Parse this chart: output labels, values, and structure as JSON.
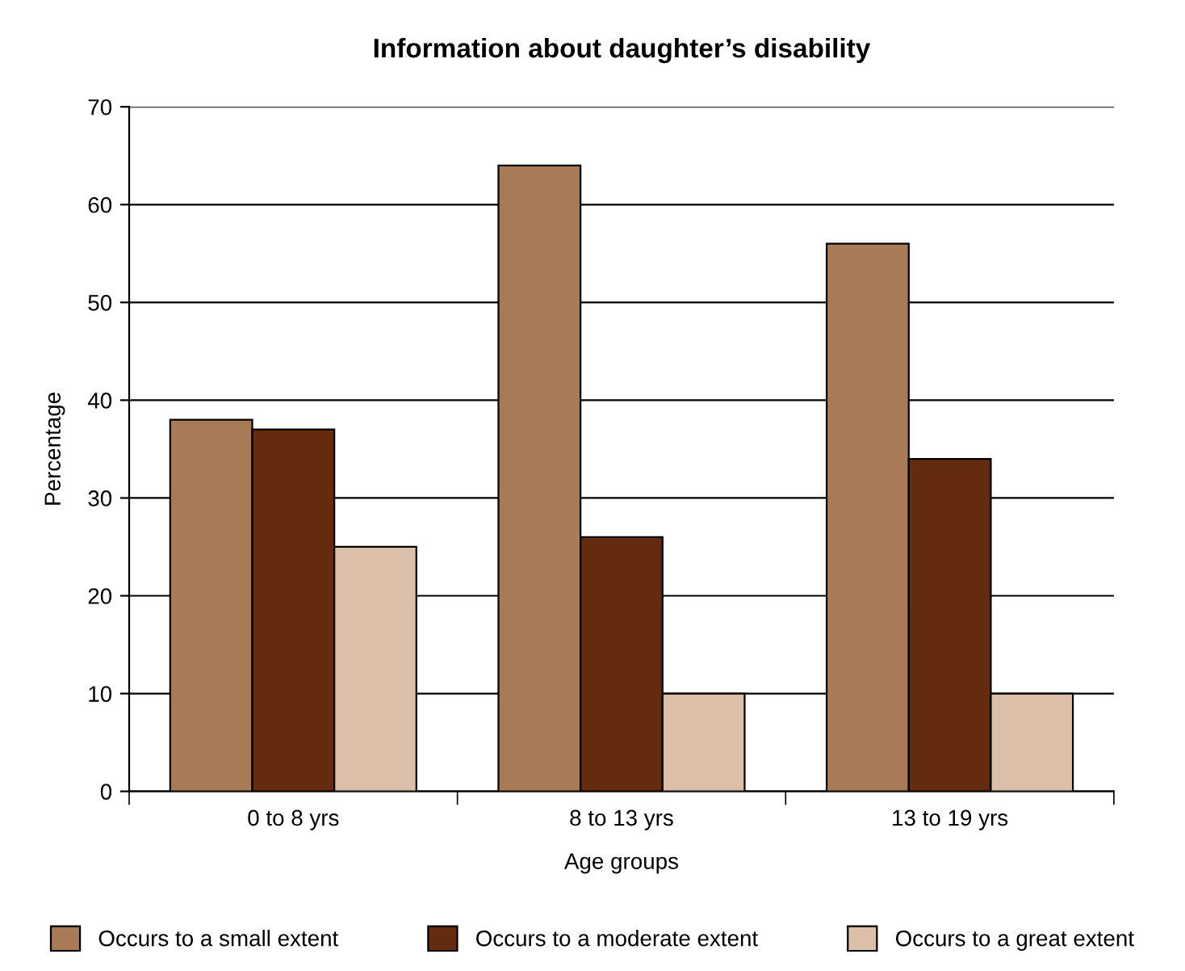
{
  "chart_data": {
    "type": "bar",
    "title": "Information about daughter’s disability",
    "xlabel": "Age groups",
    "ylabel": "Percentage",
    "categories": [
      "0 to 8 yrs",
      "8 to 13 yrs",
      "13 to 19 yrs"
    ],
    "series": [
      {
        "name": "Occurs to a small extent",
        "color": "#a97a56",
        "values": [
          38,
          64,
          56
        ]
      },
      {
        "name": "Occurs to a moderate extent",
        "color": "#652b0f",
        "values": [
          37,
          26,
          34
        ]
      },
      {
        "name": "Occurs to a great extent",
        "color": "#dbbfa8",
        "values": [
          25,
          10,
          10
        ]
      }
    ],
    "ylim": [
      0,
      70
    ],
    "yticks": [
      0,
      10,
      20,
      30,
      40,
      50,
      60,
      70
    ],
    "grid": "y",
    "legend": "bottom"
  }
}
